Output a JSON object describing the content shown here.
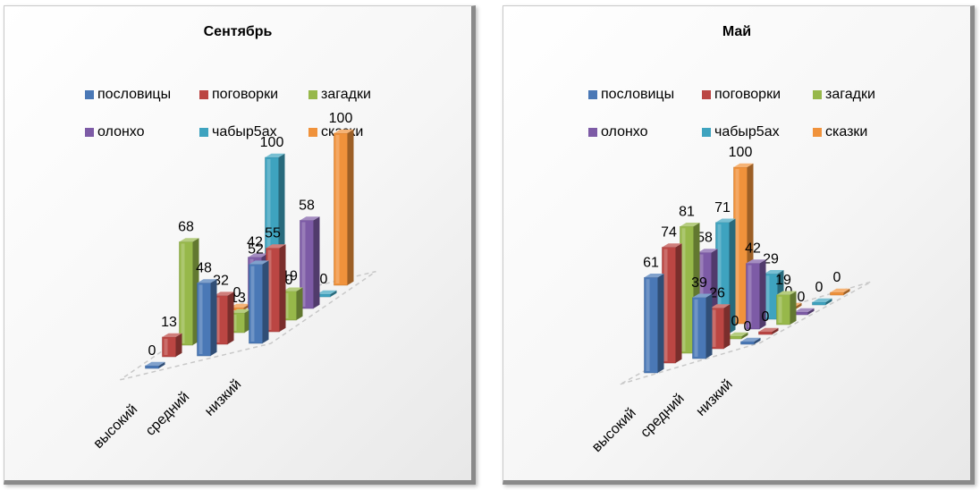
{
  "chart_data": [
    {
      "type": "bar",
      "title": "Сентябрь",
      "categories": [
        "высокий",
        "средний",
        "низкий"
      ],
      "series": [
        {
          "name": "пословицы",
          "values": [
            0,
            48,
            52
          ]
        },
        {
          "name": "поговорки",
          "values": [
            13,
            32,
            55
          ]
        },
        {
          "name": "загадки",
          "values": [
            68,
            13,
            19
          ]
        },
        {
          "name": "олонхо",
          "values": [
            0,
            42,
            58
          ]
        },
        {
          "name": "чабыр5ах",
          "values": [
            0,
            100,
            0
          ]
        },
        {
          "name": "сказки",
          "values": [
            0,
            0,
            100
          ]
        }
      ],
      "legend_position": "top",
      "colors": [
        "#4a78b6",
        "#bb4643",
        "#97b84a",
        "#7d5ba6",
        "#3ea3bf",
        "#f0923b"
      ]
    },
    {
      "type": "bar",
      "title": "Май",
      "categories": [
        "высокий",
        "средний",
        "низкий"
      ],
      "series": [
        {
          "name": "пословицы",
          "values": [
            61,
            39,
            0
          ]
        },
        {
          "name": "поговорки",
          "values": [
            74,
            26,
            0
          ]
        },
        {
          "name": "загадки",
          "values": [
            81,
            0,
            19
          ]
        },
        {
          "name": "олонхо",
          "values": [
            58,
            42,
            0
          ]
        },
        {
          "name": "чабыр5ах",
          "values": [
            71,
            29,
            0
          ]
        },
        {
          "name": "сказки",
          "values": [
            100,
            0,
            0
          ]
        }
      ],
      "legend_position": "top",
      "colors": [
        "#4a78b6",
        "#bb4643",
        "#97b84a",
        "#7d5ba6",
        "#3ea3bf",
        "#f0923b"
      ]
    }
  ]
}
